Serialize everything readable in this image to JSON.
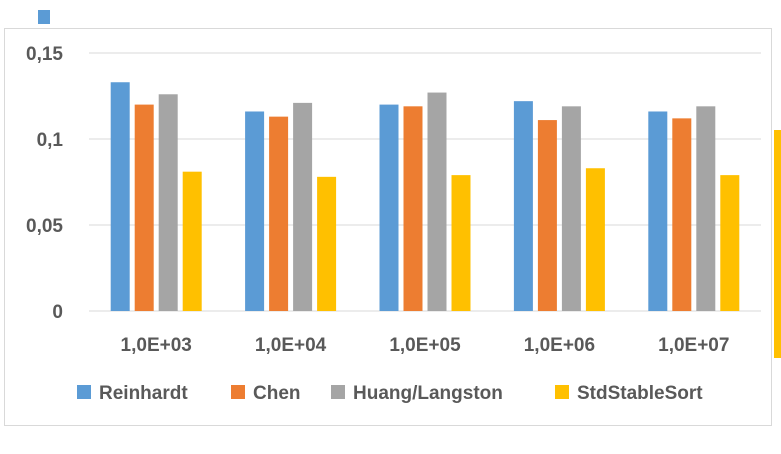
{
  "chart_data": {
    "type": "bar",
    "categories": [
      "1,0E+03",
      "1,0E+04",
      "1,0E+05",
      "1,0E+06",
      "1,0E+07"
    ],
    "series": [
      {
        "name": "Reinhardt",
        "color": "#5B9BD5",
        "values": [
          0.133,
          0.116,
          0.12,
          0.122,
          0.116
        ]
      },
      {
        "name": "Chen",
        "color": "#ED7D31",
        "values": [
          0.12,
          0.113,
          0.119,
          0.111,
          0.112
        ]
      },
      {
        "name": "Huang/Langston",
        "color": "#A5A5A5",
        "values": [
          0.126,
          0.121,
          0.127,
          0.119,
          0.119
        ]
      },
      {
        "name": "StdStableSort",
        "color": "#FFC000",
        "values": [
          0.081,
          0.078,
          0.079,
          0.083,
          0.079
        ]
      }
    ],
    "yticks": [
      "0",
      "0,05",
      "0,1",
      "0,15"
    ],
    "ytick_values": [
      0,
      0.05,
      0.1,
      0.15
    ],
    "ylim": [
      0,
      0.15
    ],
    "grid": true,
    "legend": "bottom"
  },
  "colors": {
    "gridline": "#d9d9d9",
    "text": "#595959",
    "background_fragment_blue": "#5B9BD5",
    "background_fragment_yellow": "#FFC000"
  }
}
